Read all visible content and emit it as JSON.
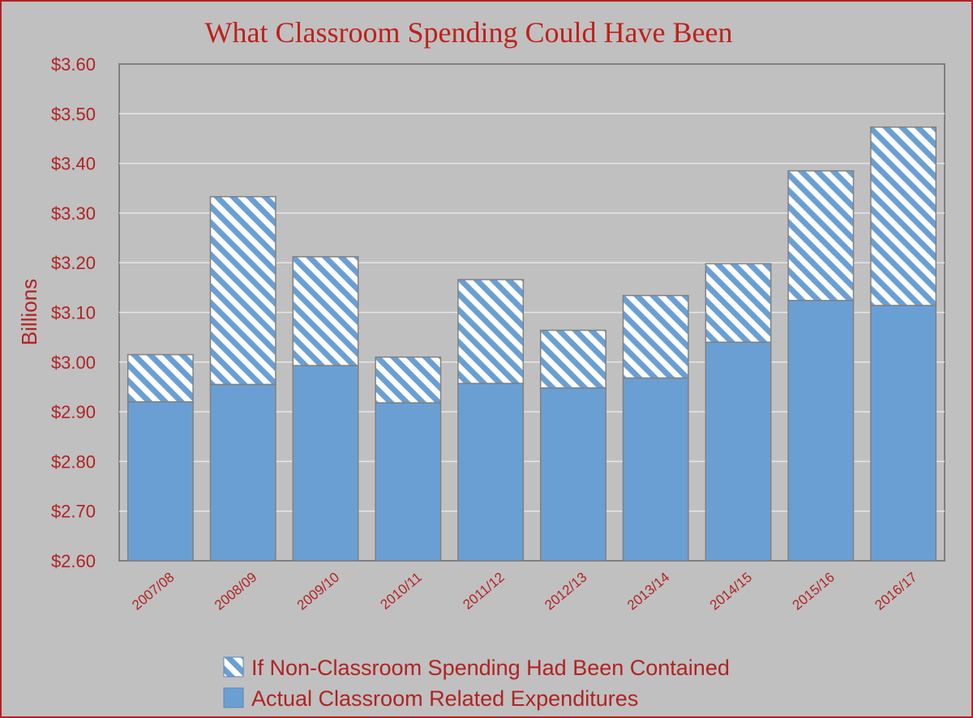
{
  "chart_data": {
    "type": "bar",
    "stacked": true,
    "title": "What Classroom Spending Could Have Been",
    "ylabel": "Billions",
    "xlabel": "",
    "ylim": [
      2.6,
      3.6
    ],
    "yticks": [
      "$2.60",
      "$2.70",
      "$2.80",
      "$2.90",
      "$3.00",
      "$3.10",
      "$3.20",
      "$3.30",
      "$3.40",
      "$3.50",
      "$3.60"
    ],
    "categories": [
      "2007/08",
      "2008/09",
      "2009/10",
      "2010/11",
      "2011/12",
      "2012/13",
      "2013/14",
      "2014/15",
      "2015/16",
      "2016/17"
    ],
    "series": [
      {
        "name": "Actual Classroom Related Expenditures",
        "values": [
          2.92,
          2.955,
          2.993,
          2.918,
          2.957,
          2.948,
          2.968,
          3.04,
          3.124,
          3.114
        ],
        "color": "#6a9fd4",
        "pattern": "solid"
      },
      {
        "name": "If Non-Classroom Spending Had Been Contained",
        "totals": [
          3.015,
          3.333,
          3.212,
          3.01,
          3.166,
          3.064,
          3.134,
          3.198,
          3.385,
          3.473
        ],
        "color": "#6a9fd4",
        "pattern": "diagonal-stripes"
      }
    ],
    "legend_position": "bottom",
    "grid": true
  }
}
